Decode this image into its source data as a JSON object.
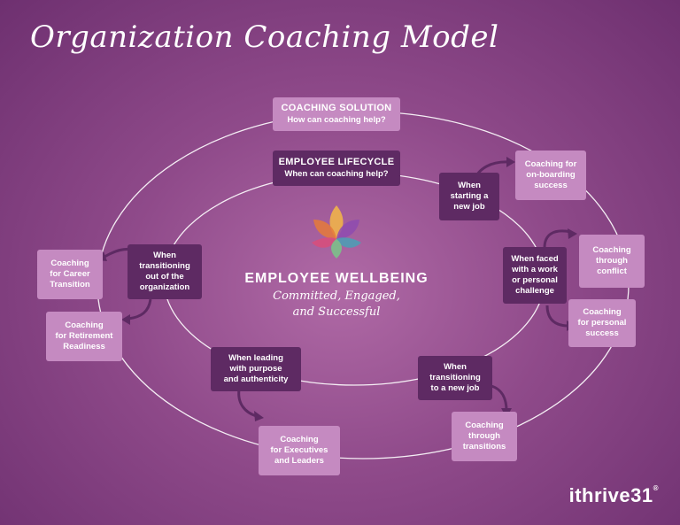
{
  "title": "Organization Coaching Model",
  "coaching_solution": {
    "title": "COACHING SOLUTION",
    "subtitle": "How can coaching help?"
  },
  "employee_lifecycle": {
    "title": "EMPLOYEE LIFECYCLE",
    "subtitle": "When can coaching help?"
  },
  "center": {
    "title": "EMPLOYEE WELLBEING",
    "subtitle": "Committed, Engaged,\nand Successful"
  },
  "stages": [
    {
      "id": "starting",
      "label": "When\nstarting a\nnew job"
    },
    {
      "id": "faced",
      "label": "When faced\nwith a work\nor personal\nchallenge"
    },
    {
      "id": "transitioning-job",
      "label": "When\ntransitioning\nto a new job"
    },
    {
      "id": "leading",
      "label": "When leading\nwith purpose\nand authenticity"
    },
    {
      "id": "transitioning-org",
      "label": "When\ntransitioning\nout of the\norganization"
    }
  ],
  "solutions": [
    {
      "id": "onboarding",
      "label": "Coaching for\non-boarding\nsuccess"
    },
    {
      "id": "conflict",
      "label": "Coaching\nthrough\nconflict"
    },
    {
      "id": "personal",
      "label": "Coaching\nfor personal\nsuccess"
    },
    {
      "id": "transitions",
      "label": "Coaching\nthrough\ntransitions"
    },
    {
      "id": "executives",
      "label": "Coaching\nfor Executives\nand Leaders"
    },
    {
      "id": "retirement",
      "label": "Coaching\nfor Retirement\nReadiness"
    },
    {
      "id": "career",
      "label": "Coaching\nfor Career\nTransition"
    }
  ],
  "colors": {
    "box_light": "#c58ac1",
    "box_dark": "#5e2a63",
    "ring": "#ffffff"
  },
  "logo": {
    "text": "ithrive31",
    "mark": "®"
  }
}
